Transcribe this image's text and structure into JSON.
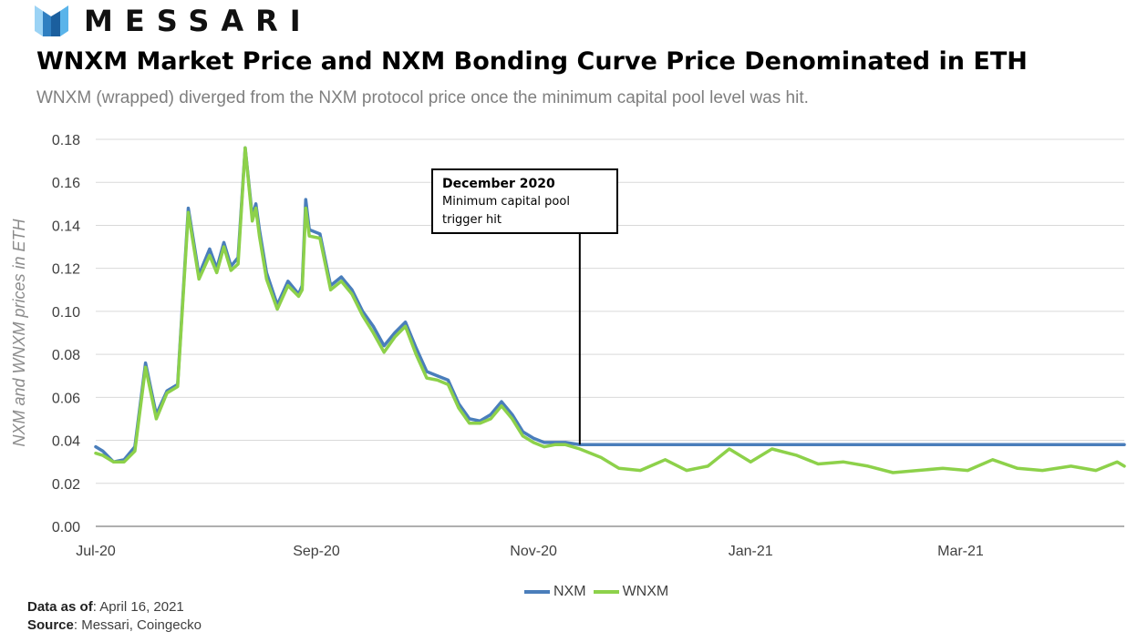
{
  "brand": {
    "name": "MESSARI"
  },
  "title": "WNXM Market Price and NXM Bonding Curve Price Denominated in ETH",
  "subtitle": "WNXM (wrapped) diverged from the NXM protocol price once the minimum capital pool level was hit.",
  "annotation": {
    "title": "December 2020",
    "text": "Minimum capital pool trigger hit"
  },
  "footer": {
    "data_label": "Data as of",
    "data_value": ": April 16, 2021",
    "source_label": "Source",
    "source_value": ": Messari, Coingecko"
  },
  "colors": {
    "nxm": "#4a7ebb",
    "wnxm": "#8dd14a",
    "grid": "#d9d9d9"
  },
  "chart_data": {
    "type": "line",
    "title": "WNXM Market Price and NXM Bonding Curve Price Denominated in ETH",
    "ylabel": "NXM and WNXM prices in ETH",
    "xlabel": "",
    "ylim": [
      0,
      0.18
    ],
    "y_ticks": [
      "0.00",
      "0.02",
      "0.04",
      "0.06",
      "0.08",
      "0.10",
      "0.12",
      "0.14",
      "0.16",
      "0.18"
    ],
    "x_ticks": [
      "Jul-20",
      "Sep-20",
      "Nov-20",
      "Jan-21",
      "Mar-21"
    ],
    "x_tick_dates": [
      "2020-07-01",
      "2020-09-01",
      "2020-11-01",
      "2021-01-01",
      "2021-03-01"
    ],
    "x_range": [
      "2020-07-01",
      "2021-04-16"
    ],
    "grid": true,
    "legend_position": "bottom",
    "annotation_date": "2020-11-14",
    "series": [
      {
        "name": "NXM",
        "x": [
          "2020-07-01",
          "2020-07-03",
          "2020-07-06",
          "2020-07-09",
          "2020-07-12",
          "2020-07-15",
          "2020-07-18",
          "2020-07-21",
          "2020-07-24",
          "2020-07-27",
          "2020-07-30",
          "2020-08-02",
          "2020-08-04",
          "2020-08-06",
          "2020-08-08",
          "2020-08-10",
          "2020-08-12",
          "2020-08-14",
          "2020-08-15",
          "2020-08-16",
          "2020-08-18",
          "2020-08-21",
          "2020-08-24",
          "2020-08-27",
          "2020-08-28",
          "2020-08-29",
          "2020-08-30",
          "2020-09-02",
          "2020-09-05",
          "2020-09-08",
          "2020-09-11",
          "2020-09-14",
          "2020-09-17",
          "2020-09-20",
          "2020-09-23",
          "2020-09-26",
          "2020-09-29",
          "2020-10-02",
          "2020-10-05",
          "2020-10-08",
          "2020-10-11",
          "2020-10-14",
          "2020-10-17",
          "2020-10-20",
          "2020-10-23",
          "2020-10-26",
          "2020-10-29",
          "2020-11-01",
          "2020-11-04",
          "2020-11-07",
          "2020-11-10",
          "2020-11-14",
          "2020-12-01",
          "2020-12-15",
          "2021-01-01",
          "2021-01-15",
          "2021-02-01",
          "2021-02-15",
          "2021-03-01",
          "2021-03-15",
          "2021-04-01",
          "2021-04-16"
        ],
        "values": [
          0.037,
          0.035,
          0.03,
          0.031,
          0.037,
          0.076,
          0.052,
          0.063,
          0.066,
          0.148,
          0.117,
          0.129,
          0.12,
          0.132,
          0.121,
          0.125,
          0.176,
          0.144,
          0.15,
          0.138,
          0.118,
          0.103,
          0.114,
          0.108,
          0.112,
          0.152,
          0.138,
          0.136,
          0.112,
          0.116,
          0.11,
          0.1,
          0.093,
          0.084,
          0.09,
          0.095,
          0.083,
          0.072,
          0.07,
          0.068,
          0.057,
          0.05,
          0.049,
          0.052,
          0.058,
          0.052,
          0.044,
          0.041,
          0.039,
          0.039,
          0.039,
          0.038,
          0.038,
          0.038,
          0.038,
          0.038,
          0.038,
          0.038,
          0.038,
          0.038,
          0.038,
          0.038
        ]
      },
      {
        "name": "WNXM",
        "x": [
          "2020-07-01",
          "2020-07-03",
          "2020-07-06",
          "2020-07-09",
          "2020-07-12",
          "2020-07-15",
          "2020-07-18",
          "2020-07-21",
          "2020-07-24",
          "2020-07-27",
          "2020-07-30",
          "2020-08-02",
          "2020-08-04",
          "2020-08-06",
          "2020-08-08",
          "2020-08-10",
          "2020-08-12",
          "2020-08-14",
          "2020-08-15",
          "2020-08-16",
          "2020-08-18",
          "2020-08-21",
          "2020-08-24",
          "2020-08-27",
          "2020-08-28",
          "2020-08-29",
          "2020-08-30",
          "2020-09-02",
          "2020-09-05",
          "2020-09-08",
          "2020-09-11",
          "2020-09-14",
          "2020-09-17",
          "2020-09-20",
          "2020-09-23",
          "2020-09-26",
          "2020-09-29",
          "2020-10-02",
          "2020-10-05",
          "2020-10-08",
          "2020-10-11",
          "2020-10-14",
          "2020-10-17",
          "2020-10-20",
          "2020-10-23",
          "2020-10-26",
          "2020-10-29",
          "2020-11-01",
          "2020-11-04",
          "2020-11-07",
          "2020-11-10",
          "2020-11-14",
          "2020-11-20",
          "2020-11-25",
          "2020-12-01",
          "2020-12-08",
          "2020-12-14",
          "2020-12-20",
          "2020-12-26",
          "2021-01-01",
          "2021-01-07",
          "2021-01-14",
          "2021-01-20",
          "2021-01-27",
          "2021-02-03",
          "2021-02-10",
          "2021-02-17",
          "2021-02-24",
          "2021-03-03",
          "2021-03-10",
          "2021-03-17",
          "2021-03-24",
          "2021-04-01",
          "2021-04-08",
          "2021-04-14",
          "2021-04-16"
        ],
        "values": [
          0.034,
          0.033,
          0.03,
          0.03,
          0.035,
          0.074,
          0.05,
          0.062,
          0.065,
          0.146,
          0.115,
          0.126,
          0.118,
          0.13,
          0.119,
          0.122,
          0.176,
          0.142,
          0.148,
          0.135,
          0.115,
          0.101,
          0.112,
          0.107,
          0.11,
          0.148,
          0.135,
          0.134,
          0.11,
          0.114,
          0.108,
          0.098,
          0.09,
          0.081,
          0.088,
          0.093,
          0.08,
          0.069,
          0.068,
          0.066,
          0.055,
          0.048,
          0.048,
          0.05,
          0.056,
          0.05,
          0.042,
          0.039,
          0.037,
          0.038,
          0.038,
          0.036,
          0.032,
          0.027,
          0.026,
          0.031,
          0.026,
          0.028,
          0.036,
          0.03,
          0.036,
          0.033,
          0.029,
          0.03,
          0.028,
          0.025,
          0.026,
          0.027,
          0.026,
          0.031,
          0.027,
          0.026,
          0.028,
          0.026,
          0.03,
          0.028
        ]
      }
    ]
  }
}
